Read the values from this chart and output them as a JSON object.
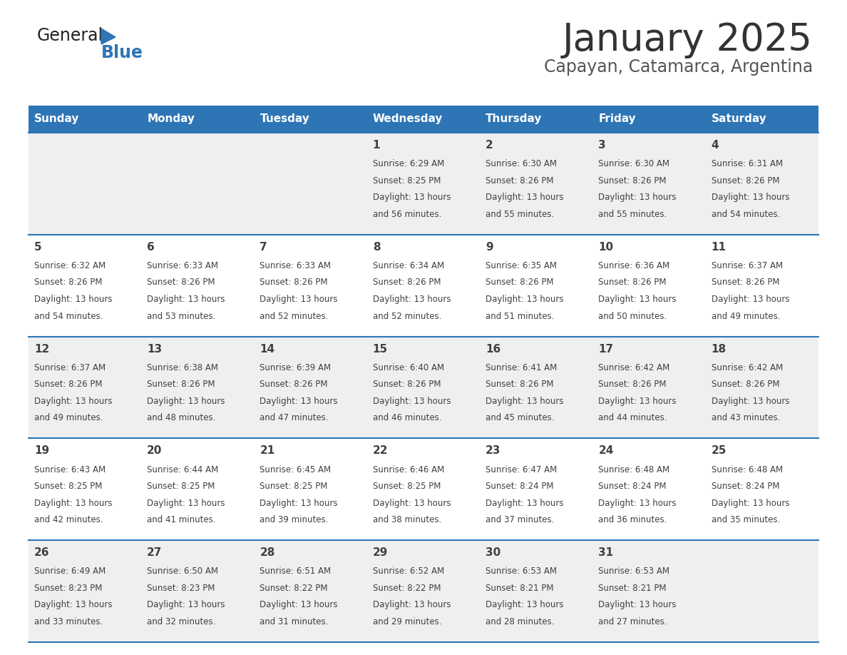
{
  "title": "January 2025",
  "subtitle": "Capayan, Catamarca, Argentina",
  "days_of_week": [
    "Sunday",
    "Monday",
    "Tuesday",
    "Wednesday",
    "Thursday",
    "Friday",
    "Saturday"
  ],
  "header_bg": "#2E75B6",
  "header_text_color": "#FFFFFF",
  "cell_bg_light": "#EFEFEF",
  "cell_bg_white": "#FFFFFF",
  "row_line_color": "#2E75B6",
  "text_color": "#404040",
  "title_color": "#333333",
  "subtitle_color": "#555555",
  "calendar": [
    [
      {
        "day": "",
        "sunrise": "",
        "sunset": "",
        "daylight_h": "",
        "daylight_m": ""
      },
      {
        "day": "",
        "sunrise": "",
        "sunset": "",
        "daylight_h": "",
        "daylight_m": ""
      },
      {
        "day": "",
        "sunrise": "",
        "sunset": "",
        "daylight_h": "",
        "daylight_m": ""
      },
      {
        "day": "1",
        "sunrise": "6:29 AM",
        "sunset": "8:25 PM",
        "daylight_h": "13 hours",
        "daylight_m": "and 56 minutes."
      },
      {
        "day": "2",
        "sunrise": "6:30 AM",
        "sunset": "8:26 PM",
        "daylight_h": "13 hours",
        "daylight_m": "and 55 minutes."
      },
      {
        "day": "3",
        "sunrise": "6:30 AM",
        "sunset": "8:26 PM",
        "daylight_h": "13 hours",
        "daylight_m": "and 55 minutes."
      },
      {
        "day": "4",
        "sunrise": "6:31 AM",
        "sunset": "8:26 PM",
        "daylight_h": "13 hours",
        "daylight_m": "and 54 minutes."
      }
    ],
    [
      {
        "day": "5",
        "sunrise": "6:32 AM",
        "sunset": "8:26 PM",
        "daylight_h": "13 hours",
        "daylight_m": "and 54 minutes."
      },
      {
        "day": "6",
        "sunrise": "6:33 AM",
        "sunset": "8:26 PM",
        "daylight_h": "13 hours",
        "daylight_m": "and 53 minutes."
      },
      {
        "day": "7",
        "sunrise": "6:33 AM",
        "sunset": "8:26 PM",
        "daylight_h": "13 hours",
        "daylight_m": "and 52 minutes."
      },
      {
        "day": "8",
        "sunrise": "6:34 AM",
        "sunset": "8:26 PM",
        "daylight_h": "13 hours",
        "daylight_m": "and 52 minutes."
      },
      {
        "day": "9",
        "sunrise": "6:35 AM",
        "sunset": "8:26 PM",
        "daylight_h": "13 hours",
        "daylight_m": "and 51 minutes."
      },
      {
        "day": "10",
        "sunrise": "6:36 AM",
        "sunset": "8:26 PM",
        "daylight_h": "13 hours",
        "daylight_m": "and 50 minutes."
      },
      {
        "day": "11",
        "sunrise": "6:37 AM",
        "sunset": "8:26 PM",
        "daylight_h": "13 hours",
        "daylight_m": "and 49 minutes."
      }
    ],
    [
      {
        "day": "12",
        "sunrise": "6:37 AM",
        "sunset": "8:26 PM",
        "daylight_h": "13 hours",
        "daylight_m": "and 49 minutes."
      },
      {
        "day": "13",
        "sunrise": "6:38 AM",
        "sunset": "8:26 PM",
        "daylight_h": "13 hours",
        "daylight_m": "and 48 minutes."
      },
      {
        "day": "14",
        "sunrise": "6:39 AM",
        "sunset": "8:26 PM",
        "daylight_h": "13 hours",
        "daylight_m": "and 47 minutes."
      },
      {
        "day": "15",
        "sunrise": "6:40 AM",
        "sunset": "8:26 PM",
        "daylight_h": "13 hours",
        "daylight_m": "and 46 minutes."
      },
      {
        "day": "16",
        "sunrise": "6:41 AM",
        "sunset": "8:26 PM",
        "daylight_h": "13 hours",
        "daylight_m": "and 45 minutes."
      },
      {
        "day": "17",
        "sunrise": "6:42 AM",
        "sunset": "8:26 PM",
        "daylight_h": "13 hours",
        "daylight_m": "and 44 minutes."
      },
      {
        "day": "18",
        "sunrise": "6:42 AM",
        "sunset": "8:26 PM",
        "daylight_h": "13 hours",
        "daylight_m": "and 43 minutes."
      }
    ],
    [
      {
        "day": "19",
        "sunrise": "6:43 AM",
        "sunset": "8:25 PM",
        "daylight_h": "13 hours",
        "daylight_m": "and 42 minutes."
      },
      {
        "day": "20",
        "sunrise": "6:44 AM",
        "sunset": "8:25 PM",
        "daylight_h": "13 hours",
        "daylight_m": "and 41 minutes."
      },
      {
        "day": "21",
        "sunrise": "6:45 AM",
        "sunset": "8:25 PM",
        "daylight_h": "13 hours",
        "daylight_m": "and 39 minutes."
      },
      {
        "day": "22",
        "sunrise": "6:46 AM",
        "sunset": "8:25 PM",
        "daylight_h": "13 hours",
        "daylight_m": "and 38 minutes."
      },
      {
        "day": "23",
        "sunrise": "6:47 AM",
        "sunset": "8:24 PM",
        "daylight_h": "13 hours",
        "daylight_m": "and 37 minutes."
      },
      {
        "day": "24",
        "sunrise": "6:48 AM",
        "sunset": "8:24 PM",
        "daylight_h": "13 hours",
        "daylight_m": "and 36 minutes."
      },
      {
        "day": "25",
        "sunrise": "6:48 AM",
        "sunset": "8:24 PM",
        "daylight_h": "13 hours",
        "daylight_m": "and 35 minutes."
      }
    ],
    [
      {
        "day": "26",
        "sunrise": "6:49 AM",
        "sunset": "8:23 PM",
        "daylight_h": "13 hours",
        "daylight_m": "and 33 minutes."
      },
      {
        "day": "27",
        "sunrise": "6:50 AM",
        "sunset": "8:23 PM",
        "daylight_h": "13 hours",
        "daylight_m": "and 32 minutes."
      },
      {
        "day": "28",
        "sunrise": "6:51 AM",
        "sunset": "8:22 PM",
        "daylight_h": "13 hours",
        "daylight_m": "and 31 minutes."
      },
      {
        "day": "29",
        "sunrise": "6:52 AM",
        "sunset": "8:22 PM",
        "daylight_h": "13 hours",
        "daylight_m": "and 29 minutes."
      },
      {
        "day": "30",
        "sunrise": "6:53 AM",
        "sunset": "8:21 PM",
        "daylight_h": "13 hours",
        "daylight_m": "and 28 minutes."
      },
      {
        "day": "31",
        "sunrise": "6:53 AM",
        "sunset": "8:21 PM",
        "daylight_h": "13 hours",
        "daylight_m": "and 27 minutes."
      },
      {
        "day": "",
        "sunrise": "",
        "sunset": "",
        "daylight_h": "",
        "daylight_m": ""
      }
    ]
  ]
}
